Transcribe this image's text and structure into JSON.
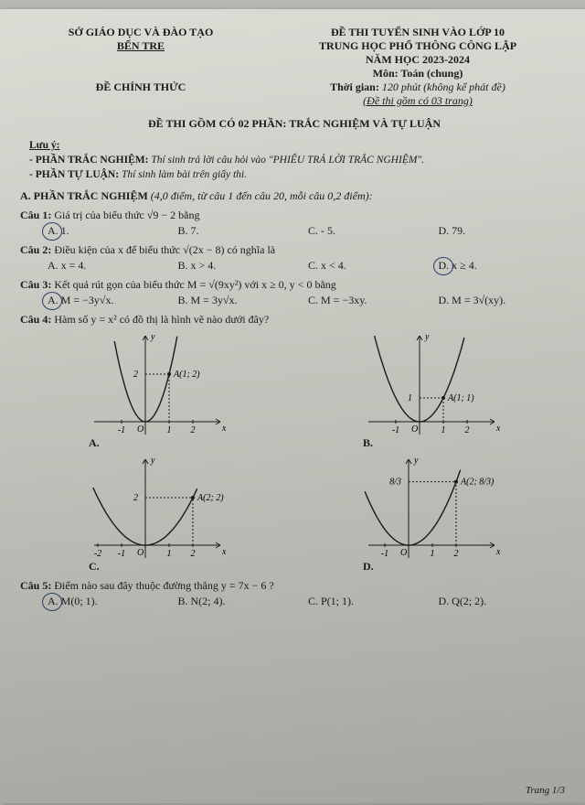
{
  "header": {
    "ministry": "SỞ GIÁO DỤC VÀ ĐÀO TẠO",
    "province": "BẾN TRE",
    "exam_line1": "ĐỀ THI TUYỂN SINH VÀO LỚP 10",
    "exam_line2": "TRUNG HỌC PHỔ THÔNG CÔNG LẬP",
    "year": "NĂM HỌC 2023-2024",
    "subject": "Môn: Toán (chung)",
    "official": "ĐỀ CHÍNH THỨC",
    "duration": "Thời gian: 120 phút (không kể phát đề)",
    "pages": "(Đề thi gồm có 03 trang)"
  },
  "title": "ĐỀ THI GỒM CÓ 02 PHẦN: TRẮC NGHIỆM VÀ TỰ LUẬN",
  "notes": {
    "heading": "Lưu ý:",
    "line1_b": "- PHẦN TRẮC NGHIỆM:",
    "line1": " Thí sinh trả lời câu hỏi vào \"PHIẾU TRẢ LỜI TRẮC NGHIỆM\".",
    "line2_b": "- PHẦN TỰ LUẬN:",
    "line2": " Thí sinh làm bài trên giấy thi."
  },
  "partA": {
    "title": "A. PHẦN TRẮC NGHIỆM ",
    "title_note": "(4,0 điểm, từ câu 1 đến câu 20, mỗi câu 0,2 điểm):"
  },
  "q1": {
    "label": "Câu 1:",
    "text": " Giá trị của biểu thức √9 − 2 bằng",
    "A": "A. 1.",
    "B": "B. 7.",
    "C": "C. - 5.",
    "D": "D. 79."
  },
  "q2": {
    "label": "Câu 2:",
    "text": " Điều kiện của x để biểu thức √(2x − 8) có nghĩa là",
    "A": "A. x = 4.",
    "B": "B. x > 4.",
    "C": "C. x < 4.",
    "D": "D. x ≥ 4."
  },
  "q3": {
    "label": "Câu 3:",
    "text": " Kết quả rút gọn của biểu thức M = √(9xy²) với x ≥ 0, y < 0 bằng",
    "A": "A. M = −3y√x.",
    "B": "B. M = 3y√x.",
    "C": "C. M = −3xy.",
    "D": "D. M = 3√(xy)."
  },
  "q4": {
    "label": "Câu 4:",
    "text": " Hàm số y = x² có đồ thị là hình vẽ nào dưới đây?"
  },
  "q5": {
    "label": "Câu 5:",
    "text": " Điểm nào sau đây thuộc đường thẳng y = 7x − 6 ?",
    "A": "A. M(0; 1).",
    "B": "B. N(2; 4).",
    "C": "C. P(1; 1).",
    "D": "D. Q(2; 2)."
  },
  "graphs": {
    "stroke": "#1a1a1a",
    "width": 140,
    "height": 115,
    "A": {
      "label": "A.",
      "point_label": "A(1; 2)",
      "py": 2,
      "px": 1,
      "xticks": [
        -1,
        1,
        2
      ],
      "a": 2,
      "xshift": 0
    },
    "B": {
      "label": "B.",
      "point_label": "A(1; 1)",
      "py": 1,
      "px": 1,
      "xticks": [
        -1,
        1,
        2
      ],
      "a": 1,
      "xshift": 0
    },
    "C": {
      "label": "C.",
      "point_label": "A(2; 2)",
      "py": 2,
      "px": 2,
      "xticks": [
        -2,
        -1,
        1,
        2
      ],
      "a": 0.5,
      "xshift": 0
    },
    "D": {
      "label": "D.",
      "point_label": "A(2; 8/3)",
      "py": 2.67,
      "px": 2,
      "xticks": [
        -1,
        1,
        2
      ],
      "a": 0.667,
      "xshift": -12
    }
  },
  "footer": "Trang 1/3"
}
